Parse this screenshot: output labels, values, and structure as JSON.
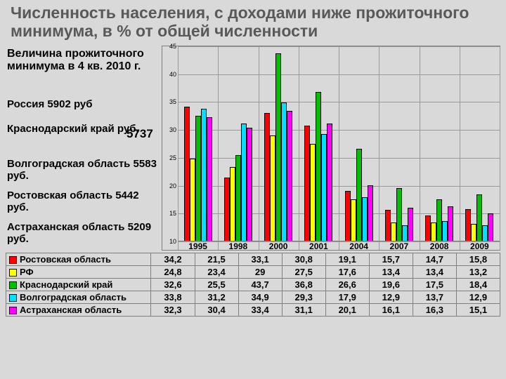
{
  "title": "Численность населения, с доходами ниже прожиточного минимума, в % от общей численности",
  "info_header": "Величина прожиточного минимума в 4 кв. 2010 г.",
  "info_lines": [
    "Россия 5902 руб",
    "Краснодарский край       руб.",
    "Волгоградская область 5583 руб.",
    "Ростовская область 5442 руб.",
    "Астраханская область 5209 руб."
  ],
  "krasnodar_value": "5737",
  "info_tops": [
    140,
    175,
    225,
    270,
    315
  ],
  "chart": {
    "ymin": 10,
    "ymax": 45,
    "ystep": 5,
    "years": [
      "1995",
      "1998",
      "2000",
      "2001",
      "2004",
      "2007",
      "2008",
      "2009"
    ],
    "series": [
      {
        "name": "Ростовская область",
        "color": "#ff0000",
        "values": [
          34.2,
          21.5,
          33.1,
          30.8,
          19.1,
          15.7,
          14.7,
          15.8
        ]
      },
      {
        "name": "РФ",
        "color": "#ffff00",
        "values": [
          24.8,
          23.4,
          29.0,
          27.5,
          17.6,
          13.4,
          13.4,
          13.2
        ]
      },
      {
        "name": "Краснодарский край",
        "color": "#00c000",
        "values": [
          32.6,
          25.5,
          43.7,
          36.8,
          26.6,
          19.6,
          17.5,
          18.4
        ]
      },
      {
        "name": "Волгоградская область",
        "color": "#00e0ff",
        "values": [
          33.8,
          31.2,
          34.9,
          29.3,
          17.9,
          12.9,
          13.7,
          12.9
        ]
      },
      {
        "name": "Астраханская область",
        "color": "#ff00ff",
        "values": [
          32.3,
          30.4,
          33.4,
          31.1,
          20.1,
          16.1,
          16.3,
          15.1
        ]
      }
    ],
    "display": [
      [
        "34,2",
        "21,5",
        "33,1",
        "30,8",
        "19,1",
        "15,7",
        "14,7",
        "15,8"
      ],
      [
        "24,8",
        "23,4",
        "29",
        "27,5",
        "17,6",
        "13,4",
        "13,4",
        "13,2"
      ],
      [
        "32,6",
        "25,5",
        "43,7",
        "36,8",
        "26,6",
        "19,6",
        "17,5",
        "18,4"
      ],
      [
        "33,8",
        "31,2",
        "34,9",
        "29,3",
        "17,9",
        "12,9",
        "13,7",
        "12,9"
      ],
      [
        "32,3",
        "30,4",
        "33,4",
        "31,1",
        "20,1",
        "16,1",
        "16,3",
        "15,1"
      ]
    ]
  }
}
